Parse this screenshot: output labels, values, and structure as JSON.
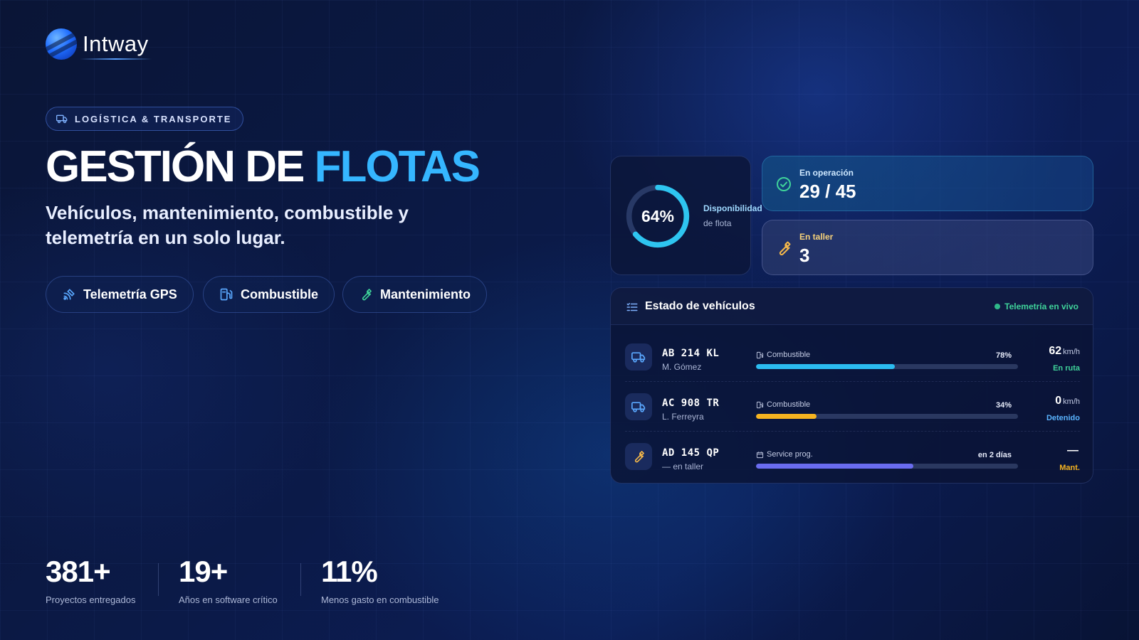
{
  "brand": {
    "name": "Intway"
  },
  "hero": {
    "category": "LOGÍSTICA & TRANSPORTE",
    "title_main": "GESTIÓN DE ",
    "title_highlight": "FLOTAS",
    "subtitle": "Vehículos, mantenimiento, combustible y telemetría en un solo lugar.",
    "features": [
      {
        "label": "Telemetría GPS",
        "icon": "satellite-icon"
      },
      {
        "label": "Combustible",
        "icon": "fuel-pump-icon"
      },
      {
        "label": "Mantenimiento",
        "icon": "wrench-icon"
      }
    ]
  },
  "stats": [
    {
      "value": "381+",
      "caption": "Proyectos entregados"
    },
    {
      "value": "19+",
      "caption": "Años en software crítico"
    },
    {
      "value": "11%",
      "caption": "Menos gasto en combustible"
    }
  ],
  "dashboard": {
    "availability": {
      "value_text": "64%",
      "value": 64,
      "label_line1": "Disponibilidad",
      "label_line2": "de flota"
    },
    "in_operation": {
      "label": "En operación",
      "value": "29 / 45",
      "icon": "check-circle-icon"
    },
    "in_shop": {
      "label": "En taller",
      "value": "3",
      "icon": "wrench-icon"
    },
    "vehicles": {
      "title": "Estado de vehículos",
      "live_label": "Telemetría en vivo",
      "rows": [
        {
          "plate": "AB 214 KL",
          "driver": "M. Gómez",
          "metric_label": "Combustible",
          "metric_icon": "fuel-pump-icon",
          "metric_value": "78%",
          "level": 53,
          "speed": "62",
          "unit": "km/h",
          "state": "En ruta",
          "icon": "truck-icon"
        },
        {
          "plate": "AC 908 TR",
          "driver": "L. Ferreyra",
          "metric_label": "Combustible",
          "metric_icon": "fuel-pump-icon",
          "metric_value": "34%",
          "level": 23,
          "speed": "0",
          "unit": "km/h",
          "state": "Detenido",
          "icon": "truck-icon"
        },
        {
          "plate": "AD 145 QP",
          "driver": "— en taller",
          "metric_label": "Service prog.",
          "metric_icon": "calendar-icon",
          "metric_value": "en 2 días",
          "level": 60,
          "speed": "—",
          "unit": "",
          "state": "Mant.",
          "icon": "wrench-icon"
        }
      ]
    }
  },
  "colors": {
    "accent": "#35b6ff",
    "fuel_ok": "#2bbcf0",
    "fuel_low": "#f5b320",
    "service": "#6a6cf0",
    "state_route": "#3fd39a",
    "state_stopped": "#5ab4ff",
    "state_maint": "#f5b320",
    "wrench": "#f5b84a"
  }
}
